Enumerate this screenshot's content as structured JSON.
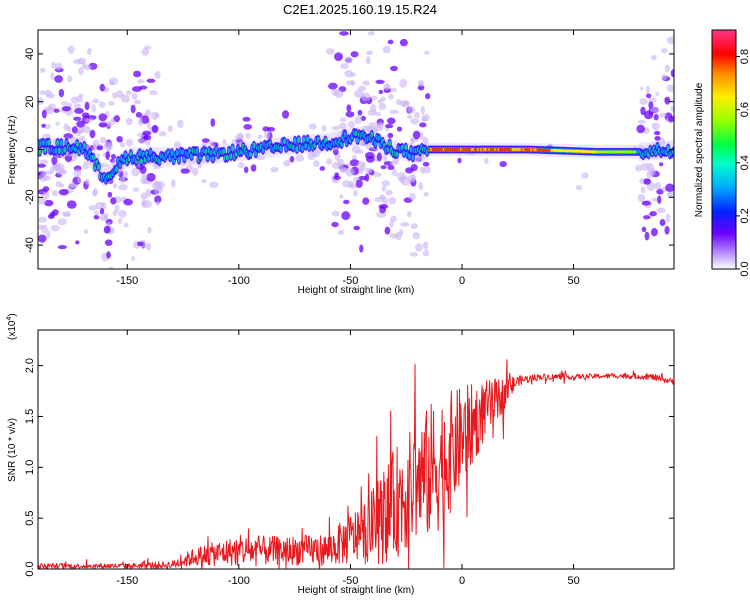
{
  "figure_title": "C2E1.2025.160.19.15.R24",
  "chart_data": [
    {
      "type": "heatmap",
      "title": "",
      "xlabel": "Height of straight line (km)",
      "ylabel": "Frequency (Hz)",
      "xlim": [
        -190,
        95
      ],
      "ylim": [
        -50,
        50
      ],
      "x_ticks": [
        -150,
        -100,
        -50,
        0,
        50
      ],
      "y_ticks": [
        -40,
        -20,
        0,
        20,
        40
      ],
      "x_tick_labels": [
        "-150",
        "-100",
        "-50",
        "0",
        "50"
      ],
      "y_tick_labels": [
        "-40",
        "-20",
        "0",
        "20",
        "40"
      ],
      "colorbar": {
        "label": "Normalized spectral amplitude",
        "range": [
          0,
          0.9
        ],
        "ticks": [
          0,
          0.2,
          0.4,
          0.6,
          0.8
        ],
        "tick_labels": [
          "0.0",
          "0.2",
          "0.4",
          "0.6",
          "0.8"
        ]
      },
      "ridge": {
        "x": [
          -190,
          -170,
          -160,
          -150,
          -130,
          -110,
          -90,
          -75,
          -60,
          -45,
          -30,
          -20,
          -15,
          0,
          30,
          60,
          80,
          95
        ],
        "freq": [
          1,
          1,
          -12,
          -3,
          -3,
          -2,
          0,
          2,
          3,
          6,
          0,
          -2,
          0,
          0,
          0,
          -1,
          -1,
          0
        ]
      },
      "scatter_regions": [
        [
          -190,
          -135
        ],
        [
          -60,
          -15
        ],
        [
          80,
          95
        ]
      ]
    },
    {
      "type": "line",
      "title": "",
      "xlabel": "Height of straight line (km)",
      "ylabel": "SNR (10 * v/v)",
      "y_multiplier": "(x10",
      "y_multiplier_exp": "4",
      "y_multiplier_close": ")",
      "xlim": [
        -190,
        95
      ],
      "ylim": [
        0,
        23500
      ],
      "x_ticks": [
        -150,
        -100,
        -50,
        0,
        50
      ],
      "y_ticks": [
        0,
        5000,
        10000,
        15000,
        20000
      ],
      "x_tick_labels": [
        "-150",
        "-100",
        "-50",
        "0",
        "50"
      ],
      "y_tick_labels": [
        "0.0",
        "0.5",
        "1.0",
        "1.5",
        "2.0"
      ],
      "line_color": "#e8191e",
      "envelope": {
        "x": [
          -190,
          -150,
          -130,
          -120,
          -100,
          -80,
          -60,
          -45,
          -35,
          -30,
          -20,
          -12,
          -5,
          0,
          10,
          20,
          25,
          35,
          50,
          70,
          85,
          95
        ],
        "center": [
          300,
          300,
          400,
          1200,
          1800,
          1800,
          1900,
          3500,
          5000,
          6500,
          8500,
          10000,
          11500,
          13000,
          15500,
          17500,
          18500,
          18900,
          18900,
          19000,
          18900,
          18400
        ],
        "noise": [
          250,
          250,
          400,
          900,
          1500,
          1400,
          1600,
          3000,
          4500,
          5500,
          6000,
          7000,
          6000,
          5000,
          3000,
          1500,
          500,
          300,
          250,
          250,
          300,
          300
        ]
      }
    }
  ]
}
